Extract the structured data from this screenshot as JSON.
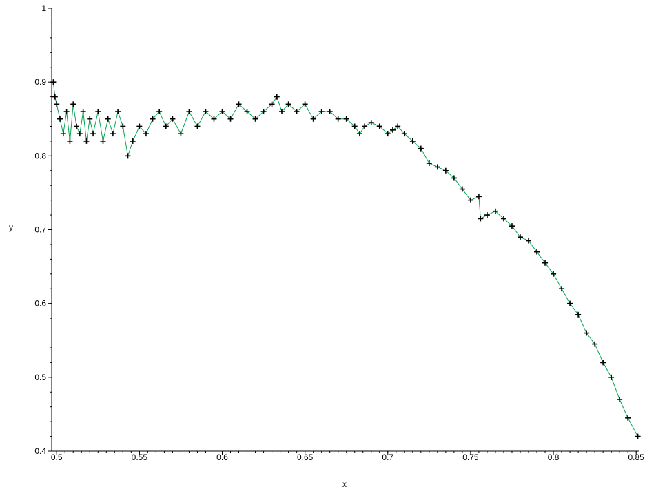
{
  "chart_data": {
    "type": "scatter",
    "title": "",
    "xlabel": "x",
    "ylabel": "y",
    "xlim": [
      0.497,
      0.852
    ],
    "ylim": [
      0.4,
      1.0
    ],
    "grid": false,
    "legend": "none",
    "xticks": [
      0.5,
      0.55,
      0.6,
      0.65,
      0.7,
      0.75,
      0.8,
      0.85
    ],
    "xtick_labels": [
      "0.5",
      "0.55",
      "0.6",
      "0.65",
      "0.7",
      "0.75",
      "0.8",
      "0.85"
    ],
    "yticks": [
      0.4,
      0.5,
      0.6,
      0.7,
      0.8,
      0.9,
      1.0
    ],
    "ytick_labels": [
      "0.4",
      "0.5",
      "0.6",
      "0.7",
      "0.8",
      "0.9",
      "1"
    ],
    "marker": "+",
    "marker_color": "#000000",
    "line_color": "#00a550",
    "series": [
      {
        "x": [
          0.498,
          0.499,
          0.5,
          0.502,
          0.504,
          0.506,
          0.508,
          0.51,
          0.512,
          0.514,
          0.516,
          0.518,
          0.52,
          0.522,
          0.525,
          0.528,
          0.531,
          0.534,
          0.537,
          0.54,
          0.543,
          0.546,
          0.55,
          0.554,
          0.558,
          0.562,
          0.566,
          0.57,
          0.575,
          0.58,
          0.585,
          0.59,
          0.595,
          0.6,
          0.605,
          0.61,
          0.615,
          0.62,
          0.625,
          0.63,
          0.633,
          0.636,
          0.64,
          0.645,
          0.65,
          0.655,
          0.66,
          0.665,
          0.67,
          0.675,
          0.68,
          0.683,
          0.686,
          0.69,
          0.695,
          0.7,
          0.703,
          0.706,
          0.71,
          0.715,
          0.72,
          0.725,
          0.73,
          0.735,
          0.74,
          0.745,
          0.75,
          0.755,
          0.756,
          0.76,
          0.765,
          0.77,
          0.775,
          0.78,
          0.785,
          0.79,
          0.795,
          0.8,
          0.805,
          0.81,
          0.815,
          0.82,
          0.825,
          0.83,
          0.835,
          0.84,
          0.845,
          0.851
        ],
        "y": [
          0.9,
          0.88,
          0.87,
          0.85,
          0.83,
          0.86,
          0.82,
          0.87,
          0.84,
          0.83,
          0.86,
          0.82,
          0.85,
          0.83,
          0.86,
          0.82,
          0.85,
          0.83,
          0.86,
          0.84,
          0.8,
          0.82,
          0.84,
          0.83,
          0.85,
          0.86,
          0.84,
          0.85,
          0.83,
          0.86,
          0.84,
          0.86,
          0.85,
          0.86,
          0.85,
          0.87,
          0.86,
          0.85,
          0.86,
          0.87,
          0.88,
          0.86,
          0.87,
          0.86,
          0.87,
          0.85,
          0.86,
          0.86,
          0.85,
          0.85,
          0.84,
          0.83,
          0.84,
          0.845,
          0.84,
          0.83,
          0.835,
          0.84,
          0.83,
          0.82,
          0.81,
          0.79,
          0.785,
          0.78,
          0.77,
          0.755,
          0.74,
          0.745,
          0.715,
          0.72,
          0.725,
          0.715,
          0.705,
          0.69,
          0.685,
          0.67,
          0.655,
          0.64,
          0.62,
          0.6,
          0.585,
          0.56,
          0.545,
          0.52,
          0.5,
          0.47,
          0.445,
          0.42
        ]
      }
    ]
  }
}
